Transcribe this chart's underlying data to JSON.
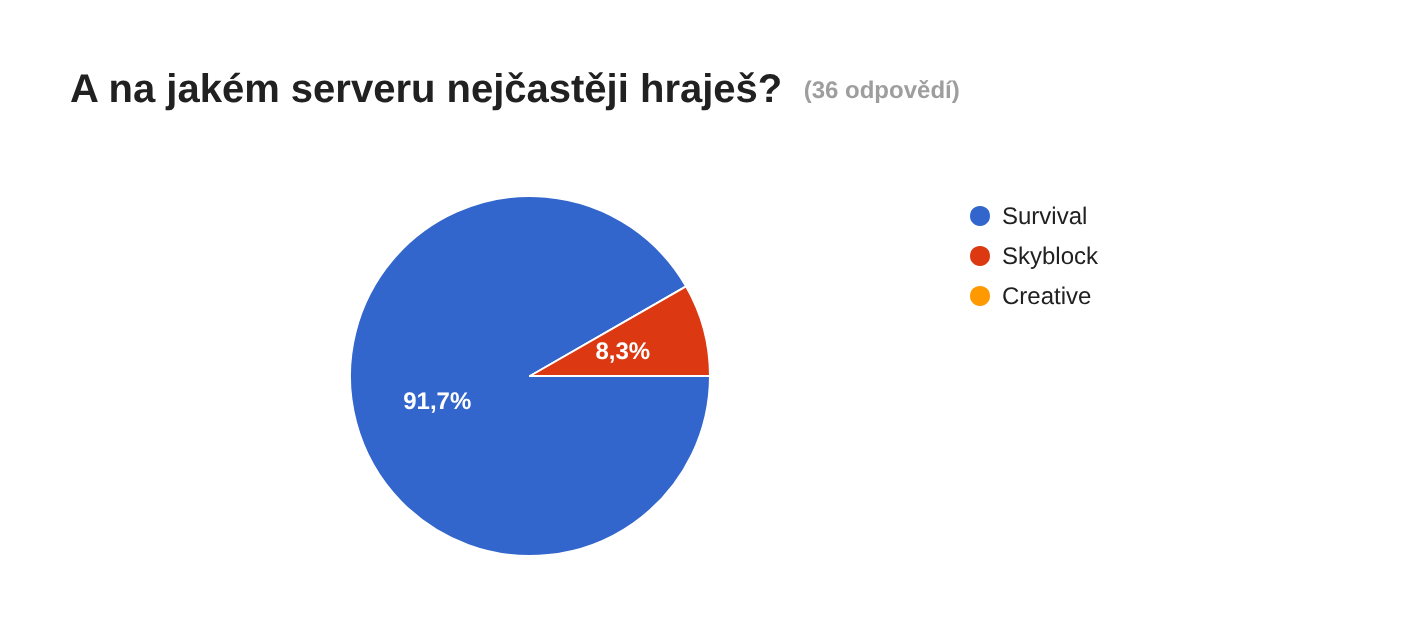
{
  "chart_data": {
    "type": "pie",
    "title": "A na jakém serveru nejčastěji hraješ?",
    "subtitle": "(36 odpovědí)",
    "categories": [
      "Survival",
      "Skyblock",
      "Creative"
    ],
    "values": [
      91.7,
      8.3,
      0
    ],
    "colors": [
      "#3366cc",
      "#dc3912",
      "#ff9900"
    ],
    "value_labels": [
      "91,7%",
      "8,3%",
      null
    ],
    "legend": "top right"
  }
}
